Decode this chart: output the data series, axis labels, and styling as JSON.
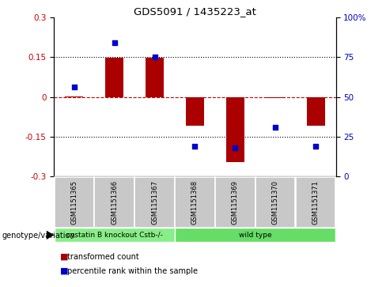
{
  "title": "GDS5091 / 1435223_at",
  "samples": [
    "GSM1151365",
    "GSM1151366",
    "GSM1151367",
    "GSM1151368",
    "GSM1151369",
    "GSM1151370",
    "GSM1151371"
  ],
  "bar_values": [
    0.003,
    0.148,
    0.148,
    -0.108,
    -0.245,
    -0.005,
    -0.108
  ],
  "percentile_values": [
    56,
    84,
    75,
    19,
    18,
    31,
    19
  ],
  "bar_color": "#aa0000",
  "dot_color": "#0000cc",
  "ylim_left": [
    -0.3,
    0.3
  ],
  "ylim_right": [
    0,
    100
  ],
  "yticks_left": [
    -0.3,
    -0.15,
    0.0,
    0.15,
    0.3
  ],
  "yticks_right": [
    0,
    25,
    50,
    75,
    100
  ],
  "ytick_labels_left": [
    "-0.3",
    "-0.15",
    "0",
    "0.15",
    "0.3"
  ],
  "ytick_labels_right": [
    "0",
    "25",
    "50",
    "75",
    "100%"
  ],
  "hlines": [
    0.15,
    0.0,
    -0.15
  ],
  "hline_styles": [
    "dotted",
    "dashed",
    "dotted"
  ],
  "hline_colors": [
    "black",
    "#cc0000",
    "black"
  ],
  "groups": [
    {
      "label": "cystatin B knockout Cstb-/-",
      "samples": [
        0,
        1,
        2
      ],
      "color": "#88ee88"
    },
    {
      "label": "wild type",
      "samples": [
        3,
        4,
        5,
        6
      ],
      "color": "#66dd66"
    }
  ],
  "group_label_prefix": "genotype/variation",
  "legend_items": [
    {
      "label": "transformed count",
      "color": "#aa0000"
    },
    {
      "label": "percentile rank within the sample",
      "color": "#0000cc"
    }
  ],
  "bar_width": 0.45,
  "bg_color": "#ffffff",
  "plot_bg_color": "#ffffff",
  "tick_label_color_left": "#cc0000",
  "tick_label_color_right": "#0000cc",
  "grey_panel_color": "#c8c8c8",
  "green_panel_color1": "#88ee88",
  "green_panel_color2": "#66dd66"
}
